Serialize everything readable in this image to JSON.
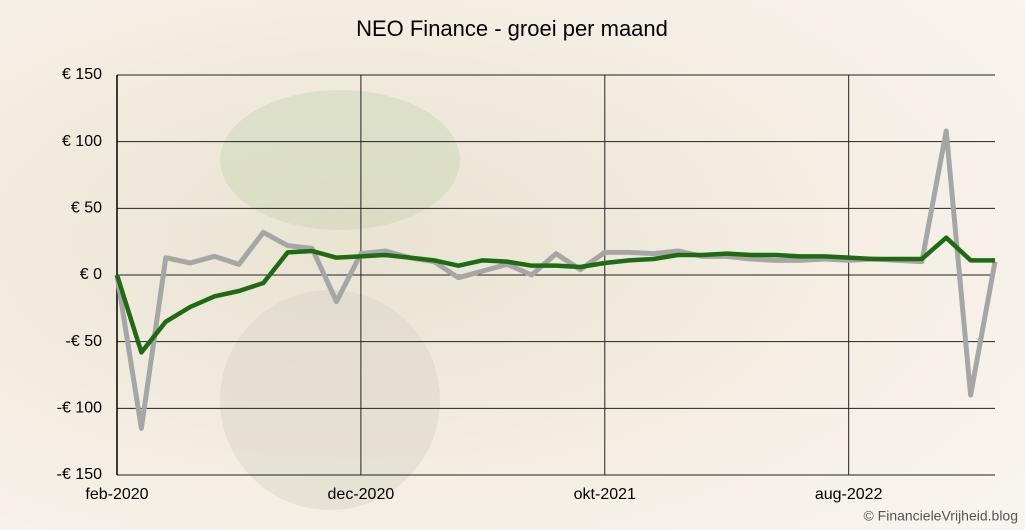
{
  "chart_data": {
    "type": "line",
    "title": "NEO Finance - groei per maand",
    "categories": [
      "feb-2020",
      null,
      null,
      null,
      null,
      null,
      null,
      null,
      null,
      null,
      "dec-2020",
      null,
      null,
      null,
      null,
      null,
      null,
      null,
      null,
      null,
      "okt-2021",
      null,
      null,
      null,
      null,
      null,
      null,
      null,
      null,
      null,
      "aug-2022",
      null,
      null,
      null,
      null,
      null,
      null
    ],
    "series": [
      {
        "name": null,
        "color": "#a6a6a6",
        "values": [
          0,
          -115,
          13,
          9,
          14,
          8,
          32,
          22,
          20,
          -20,
          16,
          18,
          13,
          10,
          -2,
          3,
          8,
          0,
          16,
          4,
          17,
          17,
          16,
          18,
          14,
          14,
          12,
          11,
          11,
          12,
          11,
          12,
          11,
          10,
          108,
          -90,
          10
        ]
      },
      {
        "name": null,
        "color": "#1e6b12",
        "values": [
          0,
          -58,
          -35,
          -24,
          -16,
          -12,
          -6,
          17,
          18,
          13,
          14,
          15,
          13,
          11,
          7,
          11,
          10,
          7,
          7,
          6,
          9,
          11,
          12,
          15,
          15,
          16,
          15,
          15,
          14,
          14,
          13,
          12,
          12,
          12,
          28,
          11,
          11
        ]
      }
    ],
    "ylim": [
      -150,
      150
    ],
    "yticks": [
      {
        "value": -150,
        "label": "-€ 150"
      },
      {
        "value": -100,
        "label": "-€ 100"
      },
      {
        "value": -50,
        "label": "-€ 50"
      },
      {
        "value": 0,
        "label": "€ 0"
      },
      {
        "value": 50,
        "label": "€ 50"
      },
      {
        "value": 100,
        "label": "€ 100"
      },
      {
        "value": 150,
        "label": "€ 150"
      }
    ],
    "grid": true,
    "credit": "© FinancieleVrijheid.blog"
  }
}
